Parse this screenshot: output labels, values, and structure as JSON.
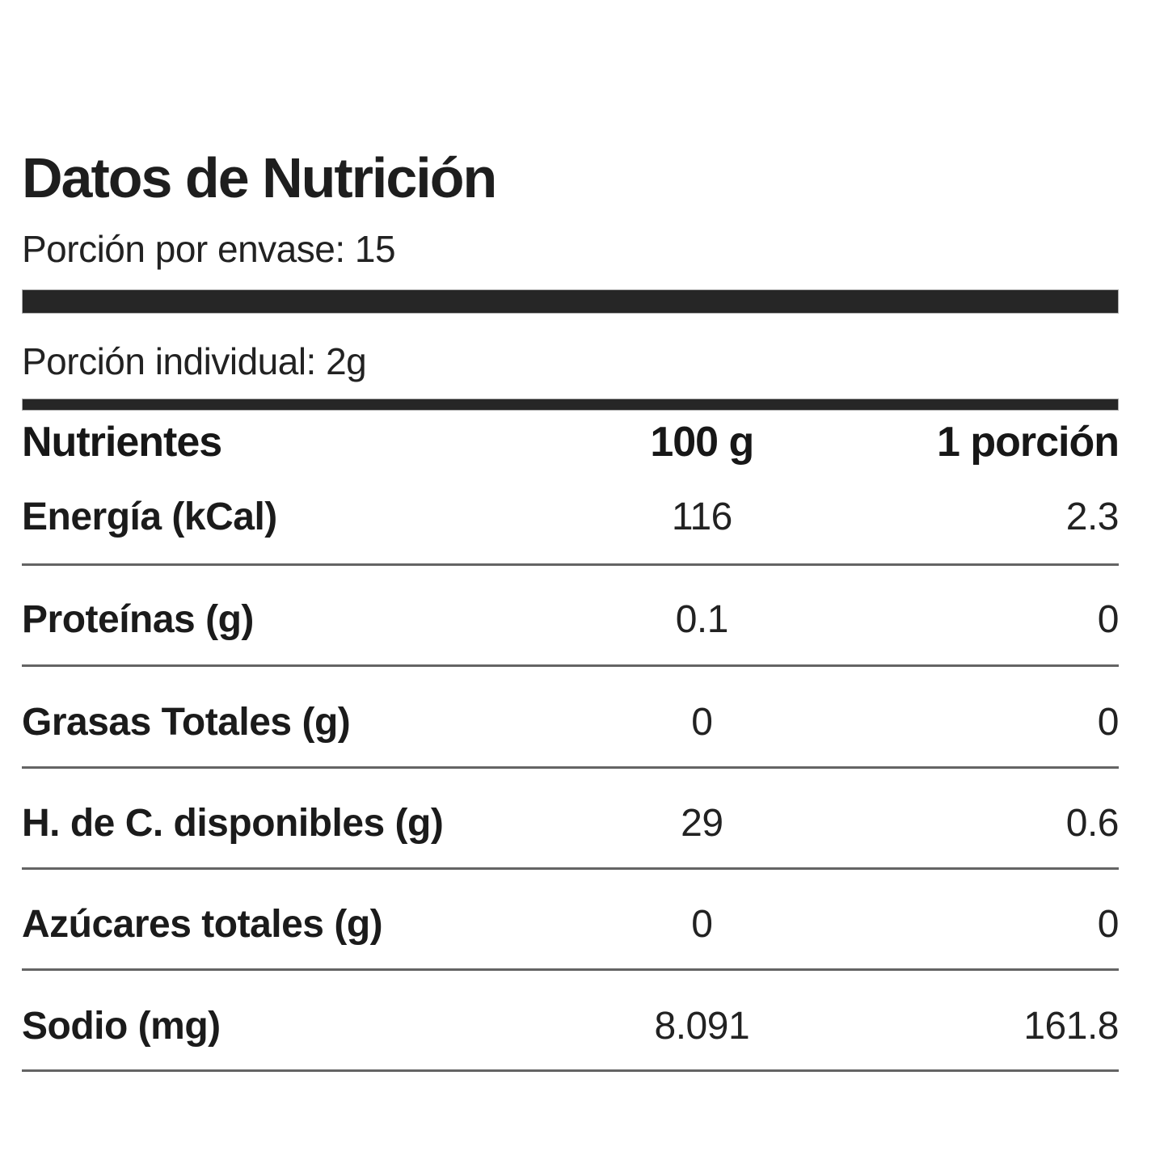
{
  "title": "Datos de Nutrición",
  "servings_line": "Porción por envase: 15",
  "serving_size_line": "Porción individual: 2g",
  "table": {
    "headers": {
      "nutrient": "Nutrientes",
      "per_100g": "100 g",
      "per_serving": "1 porción"
    },
    "rows": [
      {
        "label": "Energía (kCal)",
        "per_100g": "116",
        "per_serving": "2.3"
      },
      {
        "label": "Proteínas (g)",
        "per_100g": "0.1",
        "per_serving": "0"
      },
      {
        "label": "Grasas Totales (g)",
        "per_100g": "0",
        "per_serving": "0"
      },
      {
        "label": "H. de C. disponibles (g)",
        "per_100g": "29",
        "per_serving": "0.6"
      },
      {
        "label": "Azúcares totales (g)",
        "per_100g": "0",
        "per_serving": "0"
      },
      {
        "label": "Sodio (mg)",
        "per_100g": "8.091",
        "per_serving": "161.8"
      }
    ]
  },
  "colors": {
    "background": "#ffffff",
    "text": "#1f1f1f",
    "bar": "#262626",
    "separator": "#646464"
  }
}
